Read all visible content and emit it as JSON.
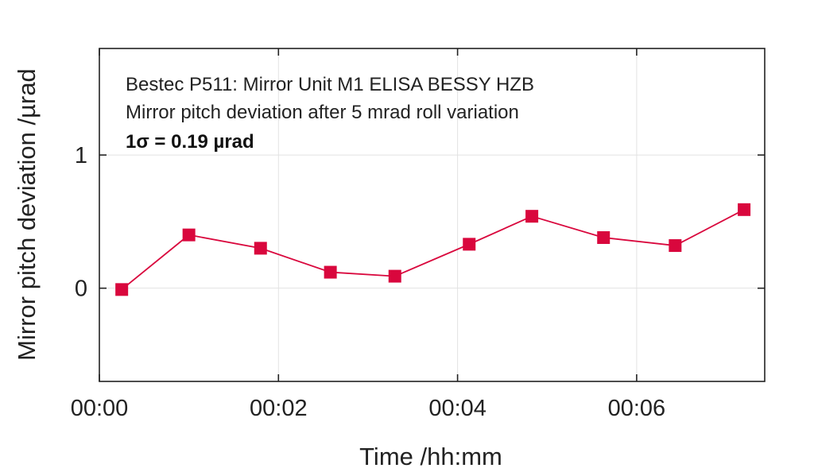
{
  "chart_data": {
    "type": "line",
    "annotations": [
      "Bestec P511: Mirror Unit M1 ELISA BESSY HZB",
      "Mirror pitch deviation after 5 mrad roll variation",
      "1σ = 0.19 µrad"
    ],
    "xlabel": "Time /hh:mm",
    "ylabel": "Mirror pitch deviation /µrad",
    "x_ticks": [
      {
        "minutes": 0,
        "label": "00:00"
      },
      {
        "minutes": 2,
        "label": "00:02"
      },
      {
        "minutes": 4,
        "label": "00:04"
      },
      {
        "minutes": 6,
        "label": "00:06"
      }
    ],
    "y_ticks": [
      {
        "value": 0,
        "label": "0"
      },
      {
        "value": 1,
        "label": "1"
      }
    ],
    "xlim_minutes": [
      0,
      7.43
    ],
    "ylim": [
      -0.7,
      1.8
    ],
    "grid": true,
    "series": [
      {
        "color": "#d9073d",
        "marker": "square",
        "x_minutes": [
          0.25,
          1.0,
          1.8,
          2.58,
          3.3,
          4.13,
          4.83,
          5.63,
          6.43,
          7.2
        ],
        "values": [
          -0.01,
          0.4,
          0.3,
          0.12,
          0.09,
          0.33,
          0.54,
          0.38,
          0.32,
          0.59
        ]
      }
    ]
  }
}
